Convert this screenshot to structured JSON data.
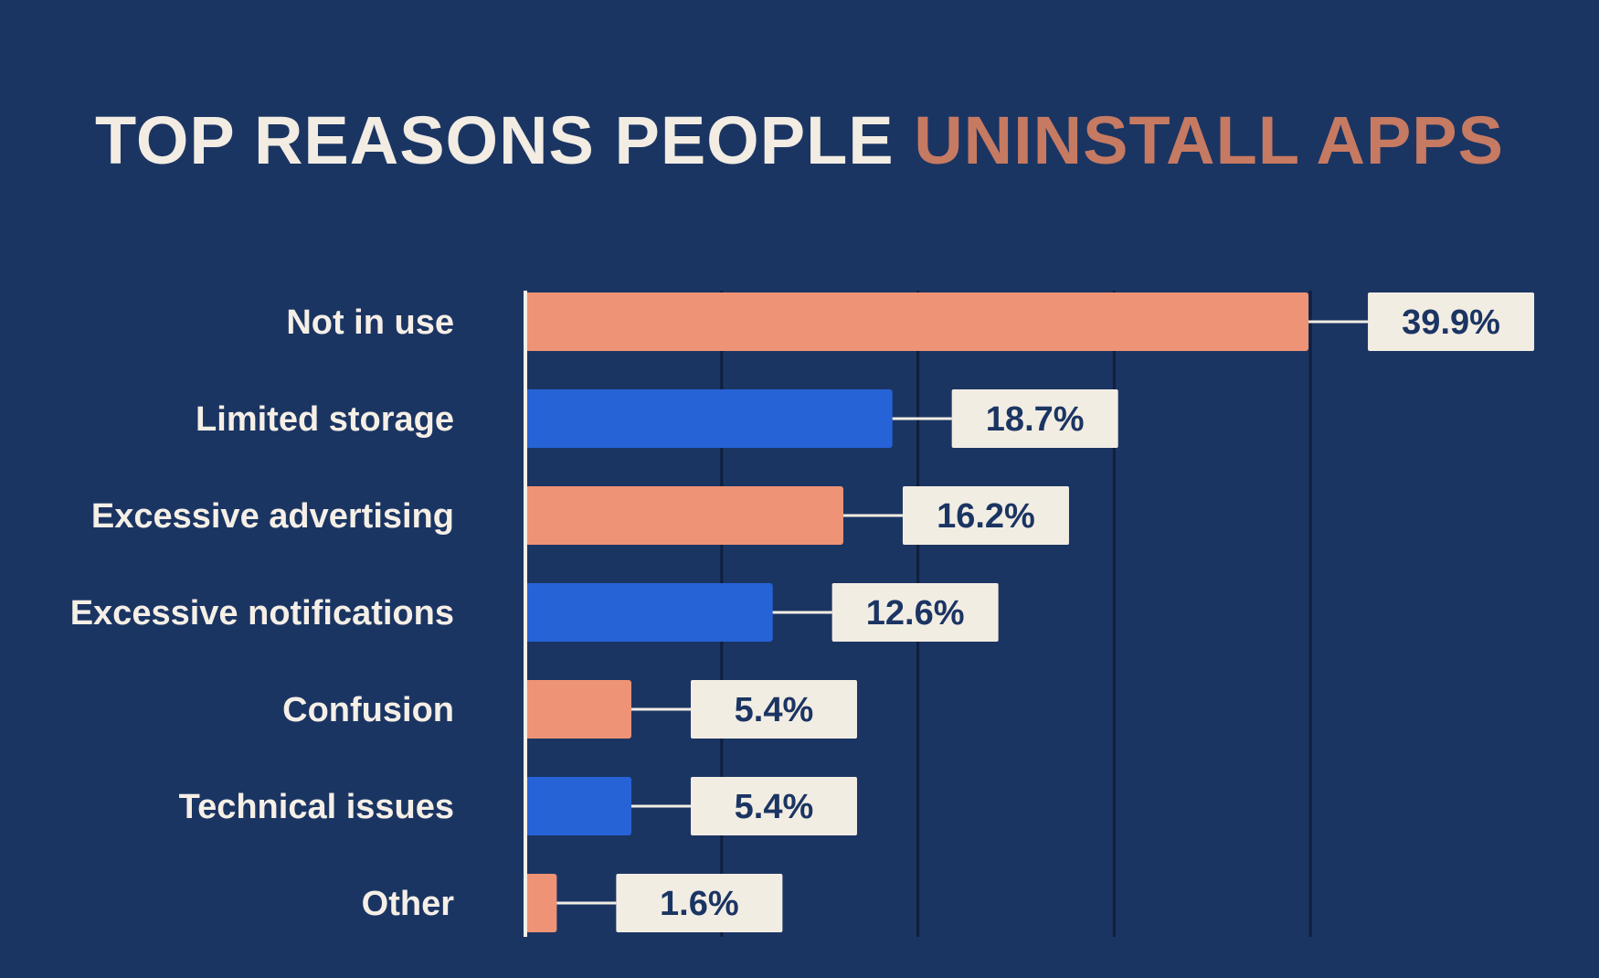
{
  "title": {
    "main": "TOP REASONS PEOPLE",
    "accent": "UNINSTALL APPS"
  },
  "colors": {
    "background": "#1b3563",
    "title_main": "#f2ece3",
    "title_accent": "#c67a62",
    "bar_orange": "#ee9375",
    "bar_blue": "#2563d6",
    "label_box": "#f2ede3",
    "label_text": "#1b3563",
    "category_text": "#f5efe6",
    "gridline": "#0f1f3d",
    "axis": "#f5efe6"
  },
  "chart_data": {
    "type": "bar",
    "orientation": "horizontal",
    "title": "TOP REASONS PEOPLE UNINSTALL APPS",
    "categories": [
      "Not in use",
      "Limited storage",
      "Excessive advertising",
      "Excessive notifications",
      "Confusion",
      "Technical issues",
      "Other"
    ],
    "values": [
      39.9,
      18.7,
      16.2,
      12.6,
      5.4,
      5.4,
      1.6
    ],
    "value_labels": [
      "39.9%",
      "18.7%",
      "16.2%",
      "12.6%",
      "5.4%",
      "5.4%",
      "1.6%"
    ],
    "bar_colors": [
      "orange",
      "blue",
      "orange",
      "blue",
      "orange",
      "blue",
      "orange"
    ],
    "xlim": [
      0,
      40
    ],
    "gridlines": [
      10,
      20,
      30,
      40
    ],
    "xlabel": "",
    "ylabel": "",
    "grid": true,
    "legend": "none"
  }
}
